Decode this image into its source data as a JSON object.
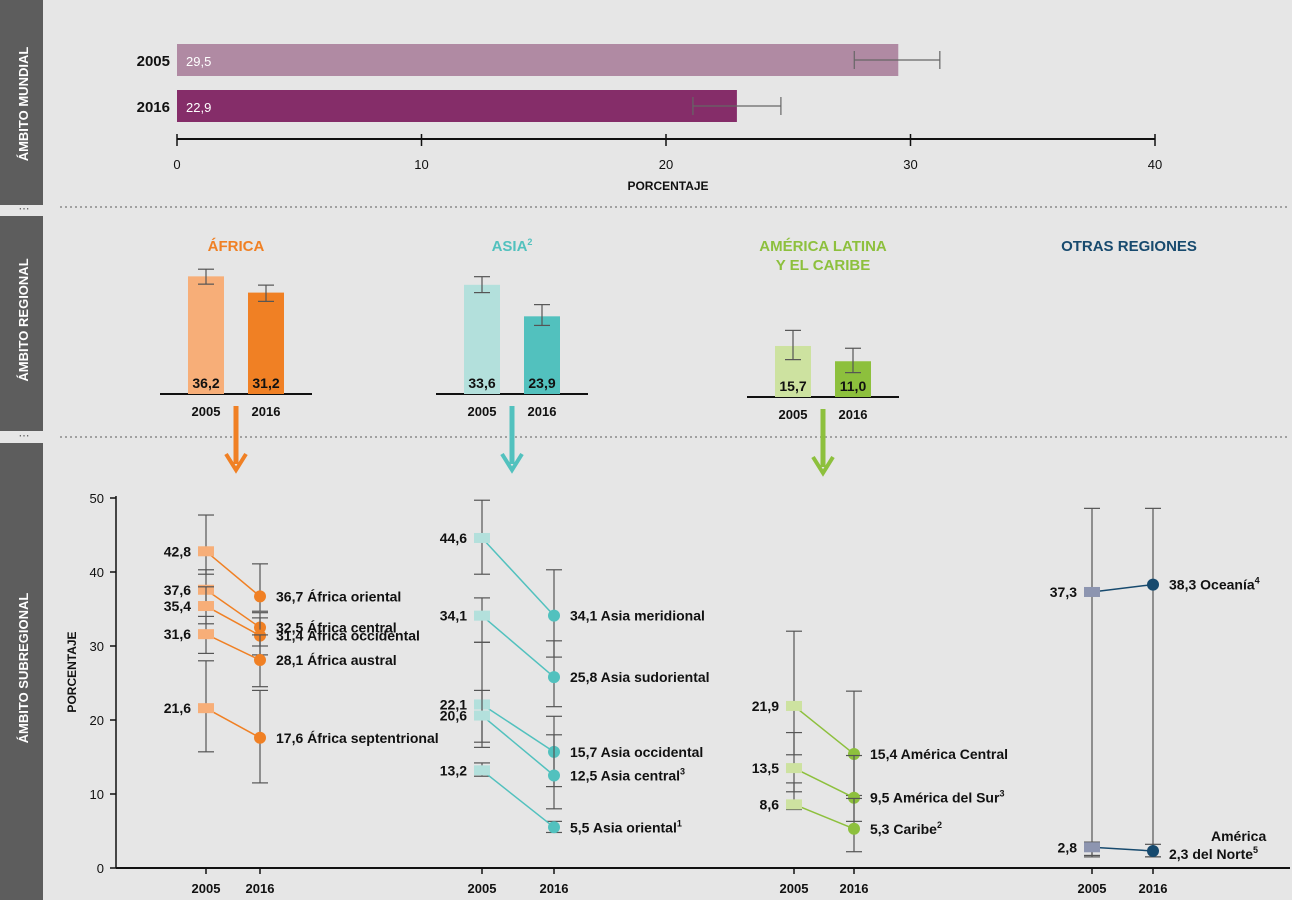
{
  "section_labels": {
    "global": "ÁMBITO MUNDIAL",
    "regional": "ÁMBITO REGIONAL",
    "subregional": "ÁMBITO SUBREGIONAL"
  },
  "colors": {
    "sidebar": "#5d5d5d",
    "background": "#e6e6e6",
    "global_2005": "#b08aa3",
    "global_2016": "#852d69",
    "africa_light": "#f7ae78",
    "africa": "#f08024",
    "asia_light": "#b3e0dc",
    "asia": "#52c1be",
    "lac_light": "#cde2a0",
    "lac": "#8dc03d",
    "other_marker_2005": "#8d95b0",
    "other": "#174a6e",
    "errorbar": "#555555"
  },
  "global_chart": {
    "xlabel": "PORCENTAJE",
    "xticks": [
      "0",
      "10",
      "20",
      "30",
      "40"
    ],
    "bars": [
      {
        "year": "2005",
        "value": 29.5,
        "label": "29,5",
        "err": [
          27.7,
          31.2
        ]
      },
      {
        "year": "2016",
        "value": 22.9,
        "label": "22,9",
        "err": [
          21.1,
          24.7
        ]
      }
    ]
  },
  "regional": [
    {
      "title": "ÁFRICA",
      "sup": "",
      "title2": "",
      "color": "#f08024",
      "light": "#f7ae78",
      "years": [
        "2005",
        "2016"
      ],
      "bars": [
        {
          "value": 36.2,
          "label": "36,2",
          "err": [
            33.8,
            38.4
          ]
        },
        {
          "value": 31.2,
          "label": "31,2",
          "err": [
            28.5,
            33.5
          ]
        }
      ]
    },
    {
      "title": "ASIA",
      "sup": "2",
      "title2": "",
      "color": "#52c1be",
      "light": "#b3e0dc",
      "years": [
        "2005",
        "2016"
      ],
      "bars": [
        {
          "value": 33.6,
          "label": "33,6",
          "err": [
            31.2,
            36.1
          ]
        },
        {
          "value": 23.9,
          "label": "23,9",
          "err": [
            21.1,
            27.5
          ]
        }
      ]
    },
    {
      "title": "AMÉRICA LATINA",
      "sup": "",
      "title2": "Y EL CARIBE",
      "color": "#8dc03d",
      "light": "#cde2a0",
      "years": [
        "2005",
        "2016"
      ],
      "bars": [
        {
          "value": 15.7,
          "label": "15,7",
          "err": [
            11.5,
            20.5
          ]
        },
        {
          "value": 11.0,
          "label": "11,0",
          "err": [
            7.5,
            15.0
          ]
        }
      ]
    },
    {
      "title": "OTRAS REGIONES",
      "sup": "",
      "title2": "",
      "color": "#174a6e",
      "light": "#174a6e",
      "years": [],
      "bars": []
    }
  ],
  "chart_data": {
    "type": "line",
    "title": "",
    "ylabel": "PORCENTAJE",
    "ylim": [
      0,
      50
    ],
    "yticks": [
      "0",
      "10",
      "20",
      "30",
      "40",
      "50"
    ],
    "groups": [
      {
        "region": "ÁFRICA",
        "x": [
          "2005",
          "2016"
        ],
        "color": "#f08024",
        "light": "#f7ae78",
        "shape_2005": "square",
        "series": [
          {
            "name": "África oriental",
            "sup": "",
            "values": [
              42.8,
              36.7
            ],
            "labels": [
              "42,8",
              "36,7"
            ],
            "err": [
              [
                39.7,
                47.7
              ],
              [
                34.7,
                41.1
              ]
            ]
          },
          {
            "name": "África central",
            "sup": "",
            "values": [
              37.6,
              32.5
            ],
            "labels": [
              "37,6",
              "32,5"
            ],
            "err": [
              [
                34.9,
                40.3
              ],
              [
                30.0,
                34.5
              ]
            ]
          },
          {
            "name": "África occidental",
            "sup": "",
            "values": [
              35.4,
              31.4
            ],
            "labels": [
              "35,4",
              "31,4"
            ],
            "err": [
              [
                33.0,
                38.0
              ],
              [
                28.8,
                33.8
              ]
            ]
          },
          {
            "name": "África austral",
            "sup": "",
            "values": [
              31.6,
              28.1
            ],
            "labels": [
              "31,6",
              "28,1"
            ],
            "err": [
              [
                29.0,
                34.0
              ],
              [
                24.5,
                31.5
              ]
            ]
          },
          {
            "name": "África septentrional",
            "sup": "",
            "values": [
              21.6,
              17.6
            ],
            "labels": [
              "21,6",
              "17,6"
            ],
            "err": [
              [
                15.7,
                28.0
              ],
              [
                11.5,
                24.0
              ]
            ]
          }
        ]
      },
      {
        "region": "ASIA",
        "x": [
          "2005",
          "2016"
        ],
        "color": "#52c1be",
        "light": "#b3e0dc",
        "shape_2005": "square",
        "series": [
          {
            "name": "Asia meridional",
            "sup": "",
            "values": [
              44.6,
              34.1
            ],
            "labels": [
              "44,6",
              "34,1"
            ],
            "err": [
              [
                39.7,
                49.7
              ],
              [
                28.5,
                40.3
              ]
            ]
          },
          {
            "name": "Asia sudoriental",
            "sup": "",
            "values": [
              34.1,
              25.8
            ],
            "labels": [
              "34,1",
              "25,8"
            ],
            "err": [
              [
                30.5,
                36.5
              ],
              [
                21.8,
                30.7
              ]
            ]
          },
          {
            "name": "Asia occidental",
            "sup": "",
            "values": [
              22.1,
              15.7
            ],
            "labels": [
              "22,1",
              "15,7"
            ],
            "err": [
              [
                17.0,
                30.5
              ],
              [
                11.0,
                20.5
              ]
            ]
          },
          {
            "name": "Asia central",
            "sup": "3",
            "values": [
              20.6,
              12.5
            ],
            "labels": [
              "20,6",
              "12,5"
            ],
            "err": [
              [
                16.3,
                24.0
              ],
              [
                8.0,
                18.0
              ]
            ]
          },
          {
            "name": "Asia oriental",
            "sup": "1",
            "values": [
              13.2,
              5.5
            ],
            "labels": [
              "13,2",
              "5,5"
            ],
            "err": [
              [
                12.4,
                14.2
              ],
              [
                4.8,
                6.3
              ]
            ]
          }
        ]
      },
      {
        "region": "AMÉRICA LATINA Y EL CARIBE",
        "x": [
          "2005",
          "2016"
        ],
        "color": "#8dc03d",
        "light": "#cde2a0",
        "shape_2005": "square",
        "series": [
          {
            "name": "América Central",
            "sup": "",
            "values": [
              21.9,
              15.4
            ],
            "labels": [
              "21,9",
              "15,4"
            ],
            "err": [
              [
                15.3,
                32.0
              ],
              [
                9.8,
                23.9
              ]
            ]
          },
          {
            "name": "América del Sur",
            "sup": "3",
            "values": [
              13.5,
              9.5
            ],
            "labels": [
              "13,5",
              "9,5"
            ],
            "err": [
              [
                10.3,
                18.3
              ],
              [
                6.3,
                15.2
              ]
            ]
          },
          {
            "name": "Caribe",
            "sup": "2",
            "values": [
              8.6,
              5.3
            ],
            "labels": [
              "8,6",
              "5,3"
            ],
            "err": [
              [
                7.9,
                11.5
              ],
              [
                2.2,
                9.4
              ]
            ]
          }
        ]
      },
      {
        "region": "OTRAS REGIONES",
        "x": [
          "2005",
          "2016"
        ],
        "color": "#174a6e",
        "light": "#8d95b0",
        "shape_2005": "square",
        "series": [
          {
            "name": "Oceanía",
            "name2": "",
            "sup": "4",
            "values": [
              37.3,
              38.3
            ],
            "labels": [
              "37,3",
              "38,3"
            ],
            "err": [
              [
                1.5,
                48.6
              ],
              [
                1.5,
                48.6
              ]
            ]
          },
          {
            "name": "América",
            "name2": "del Norte",
            "sup": "5",
            "values": [
              2.8,
              2.3
            ],
            "labels": [
              "2,8",
              "2,3"
            ],
            "err": [
              [
                1.7,
                3.5
              ],
              [
                1.5,
                3.2
              ]
            ]
          }
        ]
      }
    ]
  }
}
